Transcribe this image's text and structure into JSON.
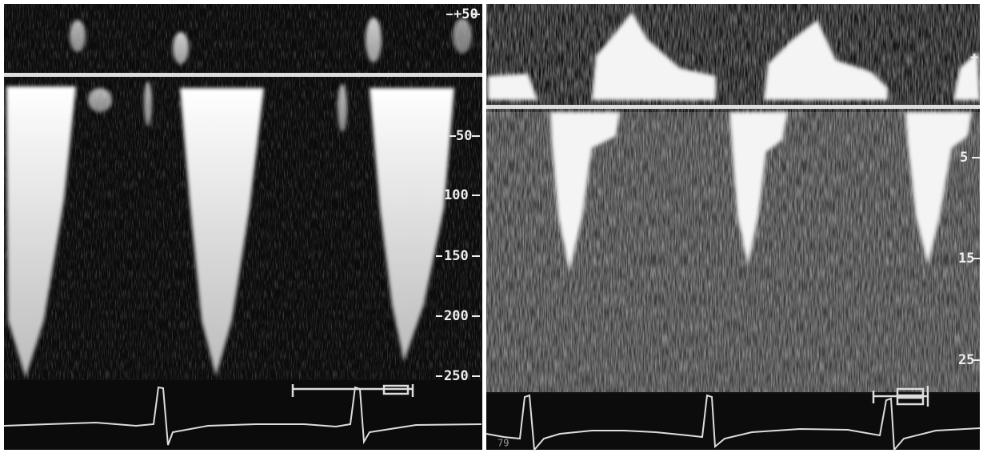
{
  "left_panel": {
    "scale_labels": [
      "+50",
      "50",
      "100",
      "150",
      "200",
      "250"
    ]
  },
  "right_panel": {
    "scale_labels": [
      "+",
      "5",
      "15",
      "25"
    ],
    "corner_text": "79"
  }
}
